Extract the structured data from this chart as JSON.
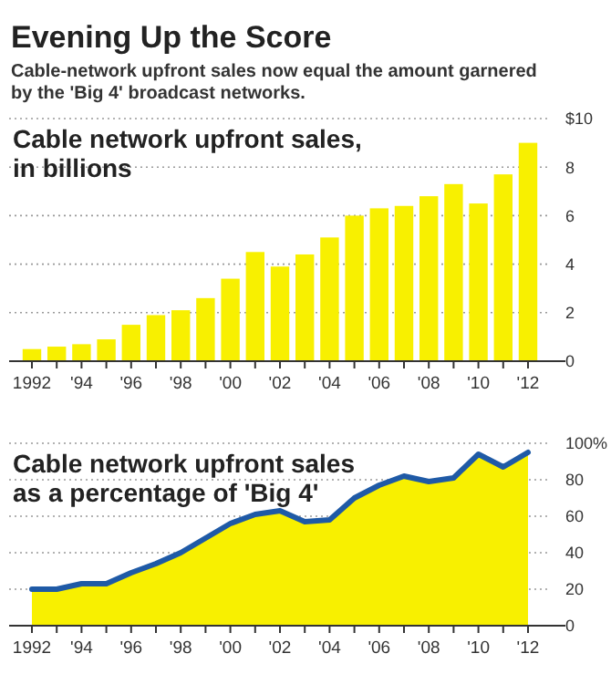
{
  "chart_data": [
    {
      "type": "bar",
      "title": "Evening Up the Score",
      "subtitle": "Cable-network upfront sales now equal the amount garnered\nby the 'Big 4' broadcast networks.",
      "ylabel": "Cable network upfront sales,\nin billions",
      "categories": [
        "1992",
        null,
        "'94",
        null,
        "'96",
        null,
        "'98",
        null,
        "'00",
        null,
        "'02",
        null,
        "'04",
        null,
        "'06",
        null,
        "'08",
        null,
        "'10",
        null,
        "'12"
      ],
      "series": [
        {
          "color": "#f8f000",
          "values": [
            0.5,
            0.6,
            0.7,
            0.9,
            1.5,
            1.9,
            2.1,
            2.6,
            3.4,
            4.5,
            3.9,
            4.4,
            5.1,
            6.0,
            6.3,
            6.4,
            6.8,
            7.3,
            6.5,
            7.7,
            9.0
          ]
        }
      ],
      "ylim": [
        0,
        10
      ],
      "yticks": [
        0,
        2,
        4,
        6,
        8,
        {
          "value": 10,
          "label": "$10"
        }
      ],
      "grid": "y"
    },
    {
      "type": "area",
      "ylabel": "Cable network upfront sales\nas a percentage of 'Big 4'",
      "categories": [
        "1992",
        null,
        "'94",
        null,
        "'96",
        null,
        "'98",
        null,
        "'00",
        null,
        "'02",
        null,
        "'04",
        null,
        "'06",
        null,
        "'08",
        null,
        "'10",
        null,
        "'12"
      ],
      "series": [
        {
          "color": "#f8f000",
          "values": [
            20,
            20,
            23,
            23,
            29,
            34,
            40,
            48,
            56,
            61,
            63,
            57,
            58,
            70,
            77,
            82,
            79,
            81,
            94,
            87,
            95
          ]
        },
        {
          "type": "line",
          "color": "#1f5aa6",
          "values": [
            20,
            20,
            23,
            23,
            29,
            34,
            40,
            48,
            56,
            61,
            63,
            57,
            58,
            70,
            77,
            82,
            79,
            81,
            94,
            87,
            95
          ]
        }
      ],
      "ylim": [
        0,
        100
      ],
      "yticks": [
        0,
        20,
        40,
        60,
        80,
        {
          "value": 100,
          "label": "100%"
        }
      ],
      "grid": "y"
    }
  ]
}
